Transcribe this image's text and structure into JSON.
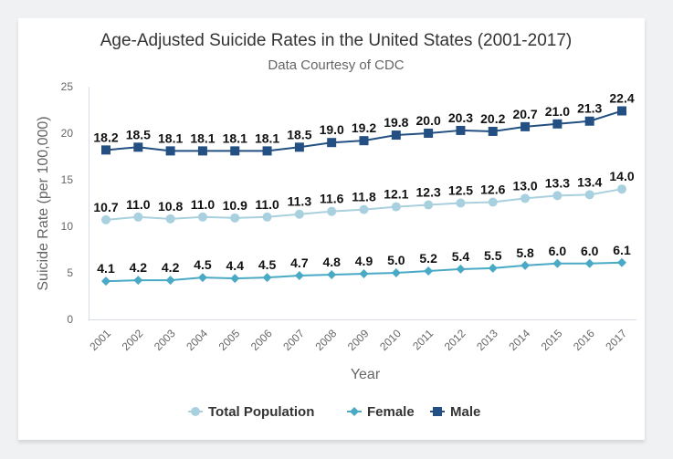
{
  "chart_data": {
    "type": "line",
    "title": "Age-Adjusted Suicide Rates in the United States (2001-2017)",
    "subtitle": "Data Courtesy of CDC",
    "xlabel": "Year",
    "ylabel": "Suicide Rate (per 100,000)",
    "ylim": [
      0,
      25
    ],
    "yticks": [
      0,
      5,
      10,
      15,
      20,
      25
    ],
    "grid": false,
    "legend_position": "bottom-center",
    "categories": [
      "2001",
      "2002",
      "2003",
      "2004",
      "2005",
      "2006",
      "2007",
      "2008",
      "2009",
      "2010",
      "2011",
      "2012",
      "2013",
      "2014",
      "2015",
      "2016",
      "2017"
    ],
    "series": [
      {
        "name": "Total Population",
        "marker": "circle",
        "color": "#a8d0de",
        "values": [
          10.7,
          11.0,
          10.8,
          11.0,
          10.9,
          11.0,
          11.3,
          11.6,
          11.8,
          12.1,
          12.3,
          12.5,
          12.6,
          13.0,
          13.3,
          13.4,
          14.0
        ]
      },
      {
        "name": "Female",
        "marker": "diamond",
        "color": "#4aaac6",
        "values": [
          4.1,
          4.2,
          4.2,
          4.5,
          4.4,
          4.5,
          4.7,
          4.8,
          4.9,
          5.0,
          5.2,
          5.4,
          5.5,
          5.8,
          6.0,
          6.0,
          6.1
        ]
      },
      {
        "name": "Male",
        "marker": "square",
        "color": "#234f82",
        "values": [
          18.2,
          18.5,
          18.1,
          18.1,
          18.1,
          18.1,
          18.5,
          19.0,
          19.2,
          19.8,
          20.0,
          20.3,
          20.2,
          20.7,
          21.0,
          21.3,
          22.4
        ]
      }
    ]
  }
}
